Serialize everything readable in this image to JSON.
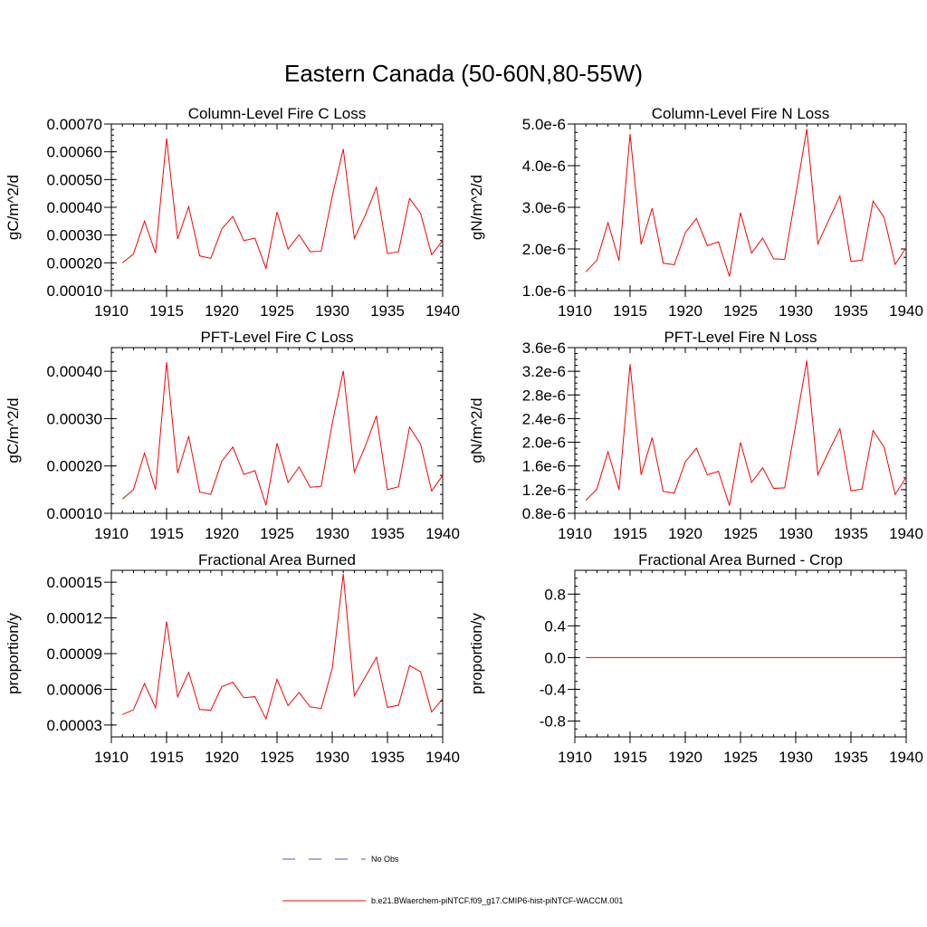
{
  "figure": {
    "title": "Eastern Canada (50-60N,80-55W)"
  },
  "colors": {
    "model_line": "#ff0000",
    "obs_line": "#4b5fa8",
    "axis": "#000000"
  },
  "legend": {
    "placement": "bottom-center",
    "entries": [
      {
        "label": "No Obs",
        "style": "dashed",
        "color": "#4b5fa8"
      },
      {
        "label": "b.e21.BWaerchem-piNTCF.f09_g17.CMIP6-hist-piNTCF-WACCM.001",
        "style": "solid",
        "color": "#ff0000"
      }
    ]
  },
  "chart_data": [
    {
      "type": "line",
      "title": "Column-Level Fire C Loss",
      "ylabel": "gC/m^2/d",
      "xlim": [
        1910,
        1940
      ],
      "ylim": [
        0.0001,
        0.0007
      ],
      "xticks": [
        "1910",
        "1915",
        "1920",
        "1925",
        "1930",
        "1935",
        "1940"
      ],
      "yticks": [
        {
          "v": 0.0001,
          "label": "0.00010"
        },
        {
          "v": 0.0002,
          "label": "0.00020"
        },
        {
          "v": 0.0003,
          "label": "0.00030"
        },
        {
          "v": 0.0004,
          "label": "0.00040"
        },
        {
          "v": 0.0005,
          "label": "0.00050"
        },
        {
          "v": 0.0006,
          "label": "0.00060"
        },
        {
          "v": 0.0007,
          "label": "0.00070"
        }
      ],
      "yminor": 2e-05,
      "x": [
        1911,
        1912,
        1913,
        1914,
        1915,
        1916,
        1917,
        1918,
        1919,
        1920,
        1921,
        1922,
        1923,
        1924,
        1925,
        1926,
        1927,
        1928,
        1929,
        1930,
        1931,
        1932,
        1933,
        1934,
        1935,
        1936,
        1937,
        1938,
        1939,
        1940
      ],
      "series": [
        {
          "values": [
            0.0002,
            0.000232,
            0.00035,
            0.000235,
            0.000648,
            0.000286,
            0.000403,
            0.000225,
            0.000216,
            0.000322,
            0.000367,
            0.00028,
            0.000289,
            0.00018,
            0.000383,
            0.00025,
            0.000301,
            0.00024,
            0.000242,
            0.00044,
            0.00061,
            0.000288,
            0.000372,
            0.000472,
            0.000233,
            0.00024,
            0.000432,
            0.000378,
            0.000229,
            0.00028
          ]
        }
      ]
    },
    {
      "type": "line",
      "title": "Column-Level Fire N Loss",
      "ylabel": "gN/m^2/d",
      "xlim": [
        1910,
        1940
      ],
      "ylim": [
        1e-06,
        5e-06
      ],
      "xticks": [
        "1910",
        "1915",
        "1920",
        "1925",
        "1930",
        "1935",
        "1940"
      ],
      "yticks": [
        {
          "v": 1e-06,
          "label": "1.0e-6"
        },
        {
          "v": 2e-06,
          "label": "2.0e-6"
        },
        {
          "v": 3e-06,
          "label": "3.0e-6"
        },
        {
          "v": 4e-06,
          "label": "4.0e-6"
        },
        {
          "v": 5e-06,
          "label": "5.0e-6"
        }
      ],
      "yminor": 2e-07,
      "x": [
        1911,
        1912,
        1913,
        1914,
        1915,
        1916,
        1917,
        1918,
        1919,
        1920,
        1921,
        1922,
        1923,
        1924,
        1925,
        1926,
        1927,
        1928,
        1929,
        1930,
        1931,
        1932,
        1933,
        1934,
        1935,
        1936,
        1937,
        1938,
        1939,
        1940
      ],
      "series": [
        {
          "values": [
            1.45e-06,
            1.73e-06,
            2.63e-06,
            1.72e-06,
            4.76e-06,
            2.11e-06,
            2.98e-06,
            1.66e-06,
            1.62e-06,
            2.39e-06,
            2.73e-06,
            2.08e-06,
            2.17e-06,
            1.34e-06,
            2.87e-06,
            1.9e-06,
            2.26e-06,
            1.76e-06,
            1.75e-06,
            3.3e-06,
            4.88e-06,
            2.12e-06,
            2.7e-06,
            3.27e-06,
            1.7e-06,
            1.73e-06,
            3.15e-06,
            2.76e-06,
            1.63e-06,
            2.03e-06
          ]
        }
      ]
    },
    {
      "type": "line",
      "title": "PFT-Level Fire C Loss",
      "ylabel": "gC/m^2/d",
      "xlim": [
        1910,
        1940
      ],
      "ylim": [
        0.0001,
        0.00045
      ],
      "xticks": [
        "1910",
        "1915",
        "1920",
        "1925",
        "1930",
        "1935",
        "1940"
      ],
      "yticks": [
        {
          "v": 0.0001,
          "label": "0.00010"
        },
        {
          "v": 0.0002,
          "label": "0.00020"
        },
        {
          "v": 0.0003,
          "label": "0.00030"
        },
        {
          "v": 0.0004,
          "label": "0.00040"
        }
      ],
      "yminor": 2e-05,
      "x": [
        1911,
        1912,
        1913,
        1914,
        1915,
        1916,
        1917,
        1918,
        1919,
        1920,
        1921,
        1922,
        1923,
        1924,
        1925,
        1926,
        1927,
        1928,
        1929,
        1930,
        1931,
        1932,
        1933,
        1934,
        1935,
        1936,
        1937,
        1938,
        1939,
        1940
      ],
      "series": [
        {
          "values": [
            0.00013,
            0.00015,
            0.000227,
            0.00015,
            0.000419,
            0.000185,
            0.000263,
            0.000145,
            0.00014,
            0.00021,
            0.00024,
            0.000182,
            0.00019,
            0.000117,
            0.000248,
            0.000165,
            0.000198,
            0.000155,
            0.000157,
            0.00029,
            0.000401,
            0.000187,
            0.000242,
            0.000306,
            0.00015,
            0.000156,
            0.000282,
            0.000246,
            0.000147,
            0.00018
          ]
        }
      ]
    },
    {
      "type": "line",
      "title": "PFT-Level Fire N Loss",
      "ylabel": "gN/m^2/d",
      "xlim": [
        1910,
        1940
      ],
      "ylim": [
        8e-07,
        3.6e-06
      ],
      "xticks": [
        "1910",
        "1915",
        "1920",
        "1925",
        "1930",
        "1935",
        "1940"
      ],
      "yticks": [
        {
          "v": 8e-07,
          "label": "0.8e-6"
        },
        {
          "v": 1.2e-06,
          "label": "1.2e-6"
        },
        {
          "v": 1.6e-06,
          "label": "1.6e-6"
        },
        {
          "v": 2e-06,
          "label": "2.0e-6"
        },
        {
          "v": 2.4e-06,
          "label": "2.4e-6"
        },
        {
          "v": 2.8e-06,
          "label": "2.8e-6"
        },
        {
          "v": 3.2e-06,
          "label": "3.2e-6"
        },
        {
          "v": 3.6e-06,
          "label": "3.6e-6"
        }
      ],
      "yminor": 1e-07,
      "x": [
        1911,
        1912,
        1913,
        1914,
        1915,
        1916,
        1917,
        1918,
        1919,
        1920,
        1921,
        1922,
        1923,
        1924,
        1925,
        1926,
        1927,
        1928,
        1929,
        1930,
        1931,
        1932,
        1933,
        1934,
        1935,
        1936,
        1937,
        1938,
        1939,
        1940
      ],
      "series": [
        {
          "values": [
            1.02e-06,
            1.21e-06,
            1.84e-06,
            1.2e-06,
            3.32e-06,
            1.45e-06,
            2.08e-06,
            1.17e-06,
            1.14e-06,
            1.67e-06,
            1.9e-06,
            1.45e-06,
            1.51e-06,
            9.3e-07,
            2e-06,
            1.32e-06,
            1.57e-06,
            1.22e-06,
            1.23e-06,
            2.3e-06,
            3.38e-06,
            1.45e-06,
            1.85e-06,
            2.23e-06,
            1.18e-06,
            1.21e-06,
            2.2e-06,
            1.92e-06,
            1.12e-06,
            1.41e-06
          ]
        }
      ]
    },
    {
      "type": "line",
      "title": "Fractional Area Burned",
      "ylabel": "proportion/y",
      "xlim": [
        1910,
        1940
      ],
      "ylim": [
        2e-05,
        0.00016
      ],
      "xticks": [
        "1910",
        "1915",
        "1920",
        "1925",
        "1930",
        "1935",
        "1940"
      ],
      "yticks": [
        {
          "v": 3e-05,
          "label": "0.00003"
        },
        {
          "v": 6e-05,
          "label": "0.00006"
        },
        {
          "v": 9e-05,
          "label": "0.00009"
        },
        {
          "v": 0.00012,
          "label": "0.00012"
        },
        {
          "v": 0.00015,
          "label": "0.00015"
        }
      ],
      "yminor": 1e-05,
      "x": [
        1911,
        1912,
        1913,
        1914,
        1915,
        1916,
        1917,
        1918,
        1919,
        1920,
        1921,
        1922,
        1923,
        1924,
        1925,
        1926,
        1927,
        1928,
        1929,
        1930,
        1931,
        1932,
        1933,
        1934,
        1935,
        1936,
        1937,
        1938,
        1939,
        1940
      ],
      "series": [
        {
          "values": [
            3.88e-05,
            4.28e-05,
            6.48e-05,
            4.45e-05,
            0.000117,
            5.37e-05,
            7.42e-05,
            4.3e-05,
            4.24e-05,
            6.22e-05,
            6.59e-05,
            5.29e-05,
            5.38e-05,
            3.5e-05,
            6.85e-05,
            4.62e-05,
            5.73e-05,
            4.52e-05,
            4.39e-05,
            7.75e-05,
            0.000157,
            5.46e-05,
            7.05e-05,
            8.69e-05,
            4.48e-05,
            4.66e-05,
            8e-05,
            7.47e-05,
            4.1e-05,
            5.2e-05
          ]
        }
      ]
    },
    {
      "type": "line",
      "title": "Fractional Area Burned - Crop",
      "ylabel": "proportion/y",
      "xlim": [
        1910,
        1940
      ],
      "ylim": [
        -1.0,
        1.1
      ],
      "xticks": [
        "1910",
        "1915",
        "1920",
        "1925",
        "1930",
        "1935",
        "1940"
      ],
      "yticks": [
        {
          "v": -0.8,
          "label": "-0.8"
        },
        {
          "v": -0.4,
          "label": "-0.4"
        },
        {
          "v": 0.0,
          "label": "0.0"
        },
        {
          "v": 0.4,
          "label": "0.4"
        },
        {
          "v": 0.8,
          "label": "0.8"
        }
      ],
      "yminor": 0.1,
      "x": [
        1911,
        1912,
        1913,
        1914,
        1915,
        1916,
        1917,
        1918,
        1919,
        1920,
        1921,
        1922,
        1923,
        1924,
        1925,
        1926,
        1927,
        1928,
        1929,
        1930,
        1931,
        1932,
        1933,
        1934,
        1935,
        1936,
        1937,
        1938,
        1939,
        1940
      ],
      "series": [
        {
          "values": [
            0,
            0,
            0,
            0,
            0,
            0,
            0,
            0,
            0,
            0,
            0,
            0,
            0,
            0,
            0,
            0,
            0,
            0,
            0,
            0,
            0,
            0,
            0,
            0,
            0,
            0,
            0,
            0,
            0,
            0
          ]
        }
      ]
    }
  ]
}
